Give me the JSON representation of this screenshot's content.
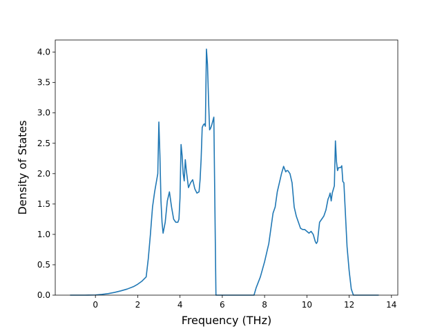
{
  "chart_data": {
    "type": "line",
    "title": "",
    "xlabel": "Frequency (THz)",
    "ylabel": "Density of States",
    "xlim": [
      -1.9,
      14.3
    ],
    "ylim": [
      0.0,
      4.2
    ],
    "x_ticks": [
      0,
      2,
      4,
      6,
      8,
      10,
      12,
      14
    ],
    "y_ticks": [
      0.0,
      0.5,
      1.0,
      1.5,
      2.0,
      2.5,
      3.0,
      3.5,
      4.0
    ],
    "x_tick_labels": [
      "0",
      "2",
      "4",
      "6",
      "8",
      "10",
      "12",
      "14"
    ],
    "y_tick_labels": [
      "0.0",
      "0.5",
      "1.0",
      "1.5",
      "2.0",
      "2.5",
      "3.0",
      "3.5",
      "4.0"
    ],
    "grid": false,
    "line_color": "#1f77b4",
    "series": [
      {
        "x": [
          -1.2,
          -0.5,
          0.0,
          0.3,
          0.6,
          0.9,
          1.2,
          1.5,
          1.8,
          2.0,
          2.2,
          2.4,
          2.5,
          2.6,
          2.7,
          2.8,
          2.9,
          2.95,
          3.0,
          3.05,
          3.1,
          3.15,
          3.2,
          3.3,
          3.4,
          3.5,
          3.6,
          3.7,
          3.8,
          3.9,
          3.95,
          4.0,
          4.05,
          4.1,
          4.15,
          4.2,
          4.25,
          4.3,
          4.4,
          4.5,
          4.6,
          4.7,
          4.8,
          4.9,
          4.95,
          5.0,
          5.05,
          5.1,
          5.15,
          5.2,
          5.25,
          5.3,
          5.35,
          5.4,
          5.45,
          5.5,
          5.6,
          5.65,
          5.7,
          6.0,
          7.0,
          7.5,
          7.6,
          7.8,
          8.0,
          8.2,
          8.4,
          8.5,
          8.6,
          8.7,
          8.8,
          8.9,
          9.0,
          9.05,
          9.1,
          9.2,
          9.3,
          9.4,
          9.5,
          9.6,
          9.7,
          9.8,
          9.9,
          10.0,
          10.1,
          10.2,
          10.3,
          10.4,
          10.45,
          10.5,
          10.6,
          10.7,
          10.8,
          10.9,
          11.0,
          11.05,
          11.1,
          11.15,
          11.2,
          11.3,
          11.35,
          11.4,
          11.45,
          11.5,
          11.6,
          11.65,
          11.7,
          11.75,
          11.8,
          11.9,
          12.0,
          12.1,
          12.2,
          12.5,
          13.4
        ],
        "y": [
          0.0,
          0.0,
          0.003,
          0.012,
          0.025,
          0.045,
          0.07,
          0.1,
          0.14,
          0.18,
          0.23,
          0.3,
          0.6,
          1.0,
          1.45,
          1.7,
          1.9,
          2.0,
          2.85,
          2.3,
          1.55,
          1.2,
          1.02,
          1.2,
          1.55,
          1.7,
          1.45,
          1.25,
          1.2,
          1.2,
          1.25,
          1.6,
          2.48,
          2.3,
          2.0,
          1.88,
          2.23,
          2.05,
          1.77,
          1.85,
          1.9,
          1.75,
          1.68,
          1.7,
          1.9,
          2.25,
          2.76,
          2.8,
          2.82,
          2.78,
          4.05,
          3.8,
          3.2,
          2.72,
          2.75,
          2.8,
          2.93,
          1.45,
          0.0,
          0.0,
          0.0,
          0.0,
          0.12,
          0.3,
          0.55,
          0.85,
          1.35,
          1.45,
          1.7,
          1.85,
          2.0,
          2.12,
          2.03,
          2.05,
          2.05,
          2.0,
          1.85,
          1.45,
          1.3,
          1.2,
          1.1,
          1.08,
          1.08,
          1.05,
          1.02,
          1.05,
          1.0,
          0.88,
          0.85,
          0.88,
          1.2,
          1.25,
          1.3,
          1.4,
          1.58,
          1.62,
          1.68,
          1.55,
          1.68,
          1.8,
          2.54,
          2.2,
          2.05,
          2.1,
          2.1,
          2.13,
          1.87,
          1.85,
          1.5,
          0.8,
          0.4,
          0.1,
          0.0,
          0.0,
          0.0
        ]
      }
    ]
  }
}
